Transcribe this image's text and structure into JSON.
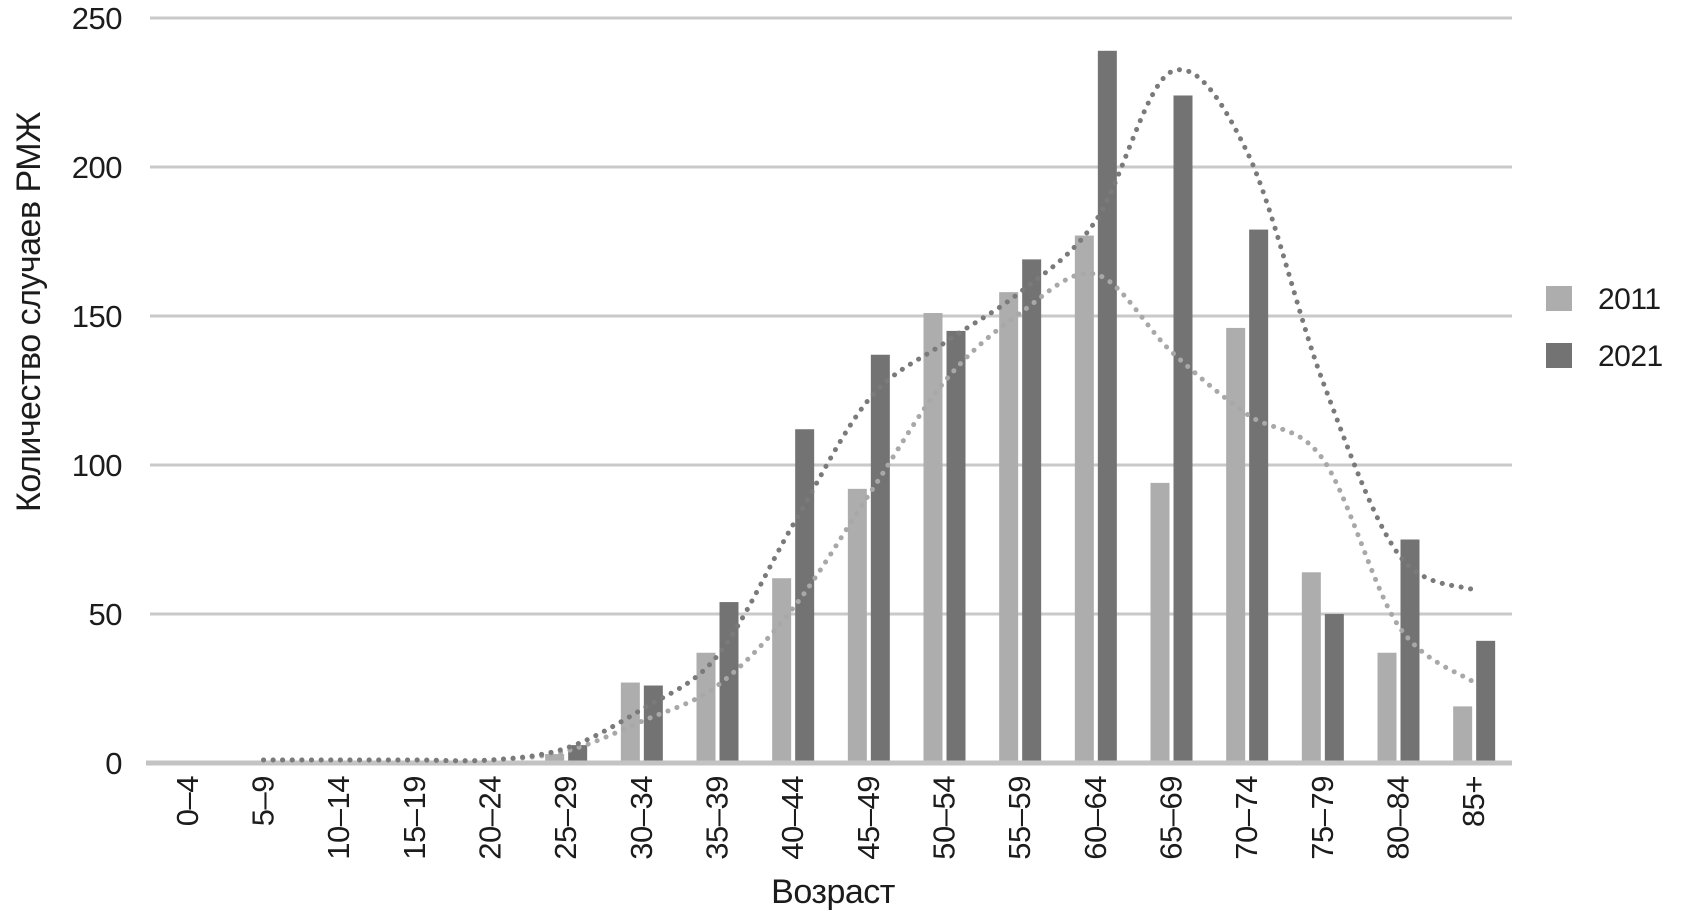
{
  "chart_data": {
    "type": "bar",
    "title": "",
    "xlabel": "Возраст",
    "ylabel": "Количество случаев РМЖ",
    "ylim": [
      0,
      250
    ],
    "yticks": [
      0,
      50,
      100,
      150,
      200,
      250
    ],
    "grid": true,
    "legend_position": "right",
    "categories": [
      "0–4",
      "5–9",
      "10–14",
      "15–19",
      "20–24",
      "25–29",
      "30–34",
      "35–39",
      "40–44",
      "45–49",
      "50–54",
      "55–59",
      "60–64",
      "65–69",
      "70–74",
      "75–79",
      "80–84",
      "85+"
    ],
    "series": [
      {
        "name": "2011",
        "type": "bar",
        "color": "#adadad",
        "values": [
          0,
          0,
          0,
          0,
          0,
          3,
          27,
          37,
          62,
          92,
          151,
          158,
          177,
          94,
          146,
          64,
          37,
          19
        ]
      },
      {
        "name": "2021",
        "type": "bar",
        "color": "#737373",
        "values": [
          0,
          0,
          0,
          0,
          0,
          6,
          26,
          54,
          112,
          137,
          145,
          169,
          239,
          224,
          179,
          50,
          75,
          41
        ]
      },
      {
        "name": "2011-trend-dotted",
        "type": "dotted-line",
        "color": "#a8a8a8",
        "values": [
          null,
          1,
          1,
          1,
          1,
          4,
          14,
          26,
          52,
          90,
          128,
          151,
          164,
          138,
          117,
          102,
          46,
          27
        ]
      },
      {
        "name": "2021-trend-dotted",
        "type": "dotted-line",
        "color": "#7a7a7a",
        "values": [
          null,
          1,
          1,
          1,
          1,
          5,
          18,
          36,
          80,
          122,
          141,
          158,
          182,
          232,
          205,
          128,
          70,
          58
        ]
      }
    ],
    "colors": {
      "background": "#ffffff",
      "gridline": "#c9c9c9",
      "axis_line": "#c3c3c3",
      "text": "#1c1c1c"
    }
  }
}
